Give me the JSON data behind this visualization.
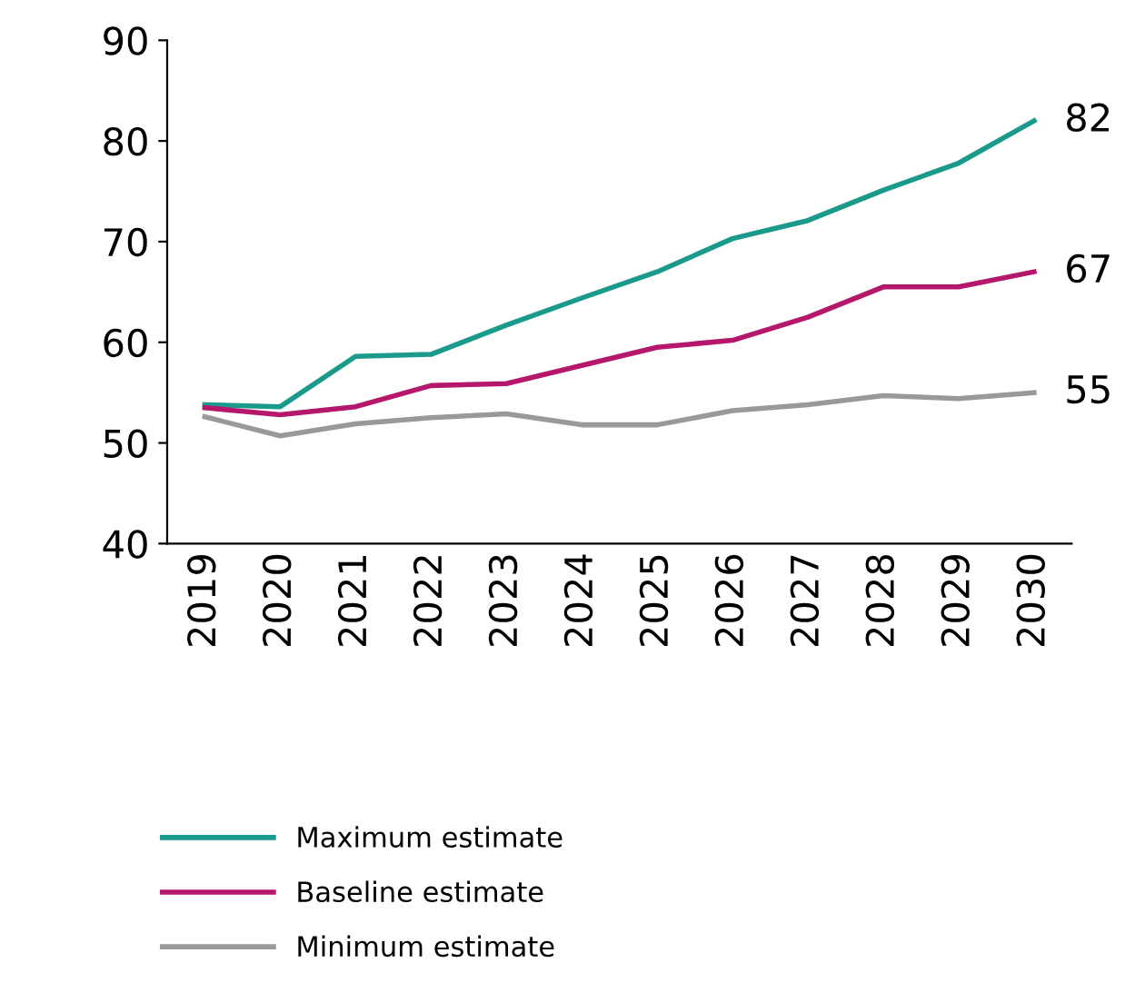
{
  "chart_data": {
    "type": "line",
    "categories": [
      "2019",
      "2020",
      "2021",
      "2022",
      "2023",
      "2024",
      "2025",
      "2026",
      "2027",
      "2028",
      "2029",
      "2030"
    ],
    "series": [
      {
        "name": "Maximum estimate",
        "color": "#1a9a8a",
        "values": [
          53.8,
          53.6,
          58.6,
          58.8,
          61.7,
          64.4,
          67.0,
          70.3,
          72.1,
          75.1,
          77.8,
          82
        ]
      },
      {
        "name": "Baseline estimate",
        "color": "#b5176b",
        "values": [
          53.5,
          52.8,
          53.6,
          55.7,
          55.9,
          57.7,
          59.5,
          60.2,
          62.5,
          65.5,
          65.5,
          67
        ]
      },
      {
        "name": "Minimum estimate",
        "color": "#999999",
        "values": [
          52.6,
          50.7,
          51.9,
          52.5,
          52.9,
          51.8,
          51.8,
          53.2,
          53.8,
          54.7,
          54.4,
          55
        ]
      }
    ],
    "ylim": [
      40,
      90
    ],
    "yticks": [
      40,
      50,
      60,
      70,
      80,
      90
    ],
    "grid": false,
    "legend": "bottom",
    "marker": "none",
    "line_style": "solid",
    "annotations": [
      {
        "text": "82",
        "x": "2030",
        "y": 82
      },
      {
        "text": "67",
        "x": "2030",
        "y": 67
      },
      {
        "text": "55",
        "x": "2030",
        "y": 55
      }
    ]
  }
}
